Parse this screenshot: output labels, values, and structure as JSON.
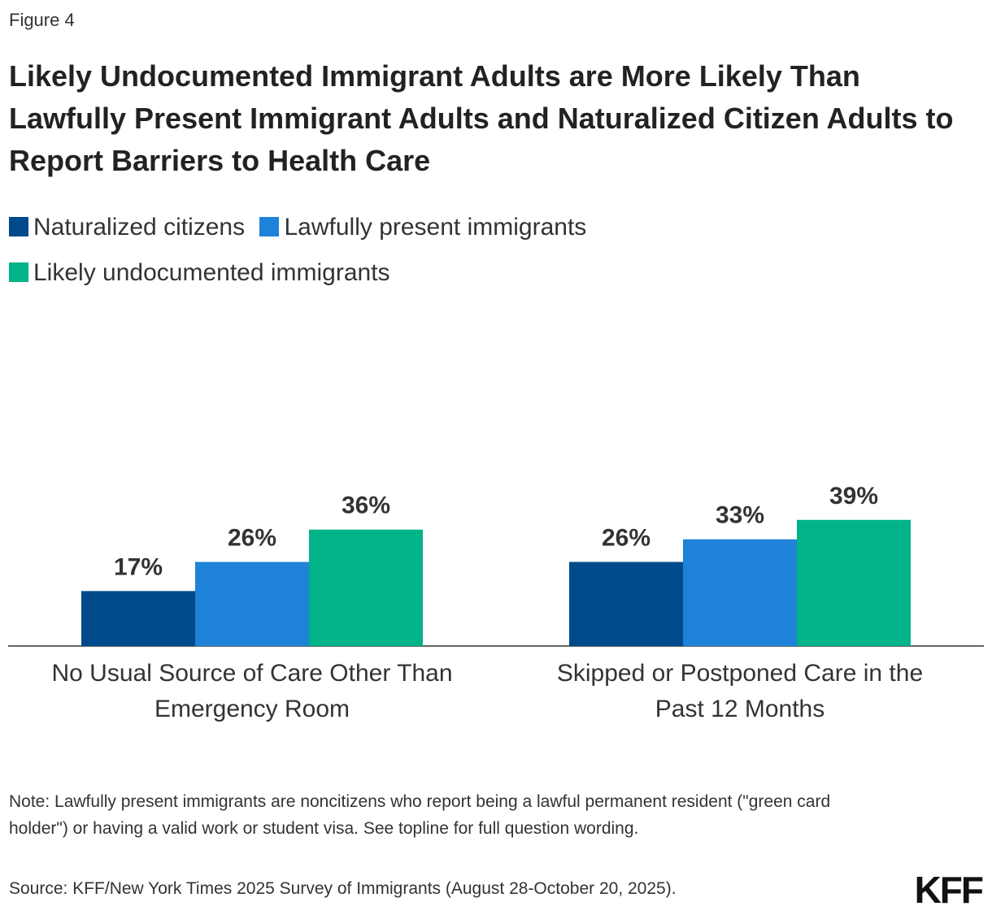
{
  "figure_label": "Figure 4",
  "logo_text": "KFF",
  "note": "Note: Lawfully present immigrants are noncitizens who report being a lawful permanent resident (\"green card holder\") or having a valid work or student visa. See topline for full question wording.",
  "source": "Source: KFF/New York Times 2025 Survey of Immigrants (August 28-October 20, 2025).",
  "chart_data": {
    "type": "bar",
    "title": "Likely Undocumented Immigrant Adults are More Likely Than Lawfully Present Immigrant Adults and Naturalized Citizen Adults to Report Barriers to Health Care",
    "categories": [
      [
        "No Usual Source of Care Other Than",
        "Emergency Room"
      ],
      [
        "Skipped or Postponed Care in the",
        "Past 12 Months"
      ]
    ],
    "series": [
      {
        "name": "Naturalized citizens",
        "color": "#00498a",
        "values": [
          17,
          26
        ],
        "labels": [
          "17%",
          "26%"
        ]
      },
      {
        "name": "Lawfully present immigrants",
        "color": "#1e82d8",
        "values": [
          26,
          33
        ],
        "labels": [
          "26%",
          "33%"
        ]
      },
      {
        "name": "Likely undocumented immigrants",
        "color": "#00b388",
        "values": [
          36,
          39
        ],
        "labels": [
          "36%",
          "39%"
        ]
      }
    ],
    "ylim": [
      0,
      100
    ],
    "legend_position": "top",
    "grid": false
  }
}
